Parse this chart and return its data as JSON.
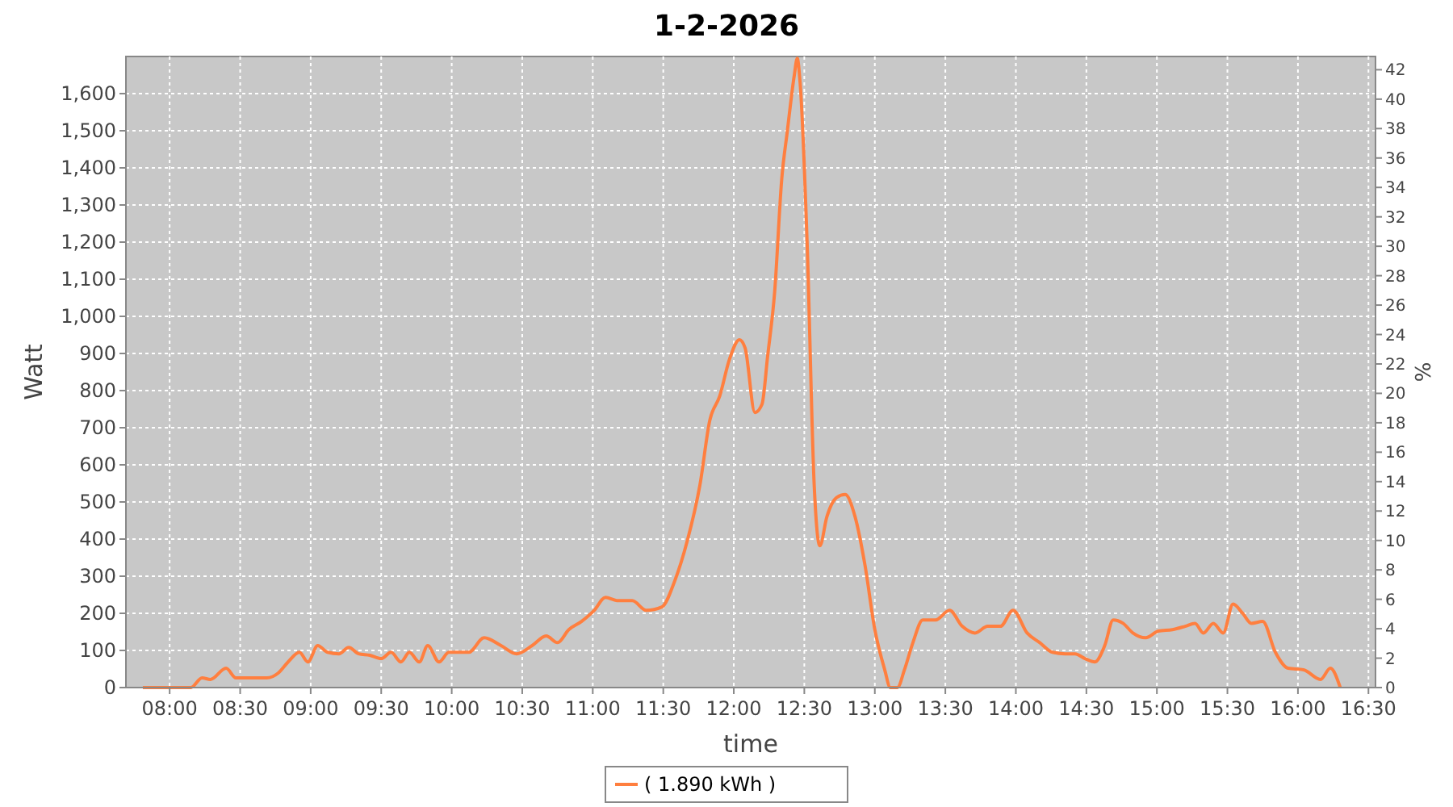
{
  "chart_data": {
    "type": "line",
    "title": "1-2-2026",
    "xlabel": "time",
    "ylabel": "Watt",
    "y2label": "%",
    "xlim": [
      7.69,
      16.55
    ],
    "ylim": [
      0,
      1700
    ],
    "y2lim": [
      0,
      42.9
    ],
    "xticks": [
      {
        "value": 8,
        "label": "08:00"
      },
      {
        "value": 8.5,
        "label": "08:30"
      },
      {
        "value": 9,
        "label": "09:00"
      },
      {
        "value": 9.5,
        "label": "09:30"
      },
      {
        "value": 10,
        "label": "10:00"
      },
      {
        "value": 10.5,
        "label": "10:30"
      },
      {
        "value": 11,
        "label": "11:00"
      },
      {
        "value": 11.5,
        "label": "11:30"
      },
      {
        "value": 12,
        "label": "12:00"
      },
      {
        "value": 12.5,
        "label": "12:30"
      },
      {
        "value": 13,
        "label": "13:00"
      },
      {
        "value": 13.5,
        "label": "13:30"
      },
      {
        "value": 14,
        "label": "14:00"
      },
      {
        "value": 14.5,
        "label": "14:30"
      },
      {
        "value": 15,
        "label": "15:00"
      },
      {
        "value": 15.5,
        "label": "15:30"
      },
      {
        "value": 16,
        "label": "16:00"
      },
      {
        "value": 16.5,
        "label": "16:30"
      }
    ],
    "yticks": [
      0,
      100,
      200,
      300,
      400,
      500,
      600,
      700,
      800,
      900,
      {
        "value": 1000,
        "label": "1,000"
      },
      {
        "value": 1100,
        "label": "1,100"
      },
      {
        "value": 1200,
        "label": "1,200"
      },
      {
        "value": 1300,
        "label": "1,300"
      },
      {
        "value": 1400,
        "label": "1,400"
      },
      {
        "value": 1500,
        "label": "1,500"
      },
      {
        "value": 1600,
        "label": "1,600"
      }
    ],
    "y2ticks": [
      0,
      2,
      4,
      6,
      8,
      10,
      12,
      14,
      16,
      18,
      20,
      22,
      24,
      26,
      28,
      30,
      32,
      34,
      36,
      38,
      40,
      42
    ],
    "grid": true,
    "legend": "bottom",
    "marker": "none",
    "line_style": "solid",
    "series": [
      {
        "name": "( 1.890 kWh )",
        "color": "#ff7f3f",
        "x": [
          7.81,
          8.15,
          8.23,
          8.29,
          8.4,
          8.47,
          8.57,
          8.69,
          8.77,
          8.84,
          8.92,
          8.98,
          9.05,
          9.12,
          9.2,
          9.27,
          9.34,
          9.42,
          9.5,
          9.57,
          9.64,
          9.7,
          9.77,
          9.83,
          9.91,
          9.98,
          10.12,
          10.23,
          10.35,
          10.46,
          10.57,
          10.67,
          10.75,
          10.83,
          10.92,
          11.01,
          11.09,
          11.18,
          11.28,
          11.38,
          11.49,
          11.58,
          11.67,
          11.76,
          11.83,
          11.9,
          11.97,
          12.04,
          12.08,
          12.15,
          12.2,
          12.24,
          12.29,
          12.34,
          12.38,
          12.43,
          12.45,
          12.47,
          12.52,
          12.57,
          12.61,
          12.66,
          12.73,
          12.79,
          12.86,
          12.93,
          13.0,
          13.07,
          13.11,
          13.16,
          13.21,
          13.27,
          13.34,
          13.43,
          13.53,
          13.62,
          13.71,
          13.8,
          13.89,
          13.98,
          14.08,
          14.17,
          14.26,
          14.35,
          14.42,
          14.49,
          14.56,
          14.63,
          14.69,
          14.76,
          14.83,
          14.92,
          15.01,
          15.11,
          15.2,
          15.27,
          15.33,
          15.4,
          15.47,
          15.54,
          15.61,
          15.67,
          15.75,
          15.84,
          15.93,
          16.04,
          16.16,
          16.23,
          16.3
        ],
        "values": [
          0,
          0,
          26,
          22,
          52,
          26,
          26,
          26,
          39,
          69,
          95,
          69,
          113,
          95,
          91,
          108,
          91,
          87,
          78,
          95,
          69,
          95,
          69,
          113,
          69,
          95,
          95,
          134,
          113,
          91,
          113,
          139,
          121,
          156,
          178,
          208,
          243,
          234,
          234,
          208,
          217,
          286,
          395,
          546,
          720,
          785,
          885,
          937,
          915,
          741,
          763,
          893,
          1067,
          1370,
          1500,
          1652,
          1695,
          1630,
          1197,
          546,
          382,
          460,
          512,
          520,
          460,
          330,
          156,
          48,
          0,
          0,
          48,
          121,
          182,
          182,
          208,
          165,
          147,
          165,
          165,
          208,
          147,
          121,
          95,
          91,
          91,
          78,
          69,
          113,
          182,
          173,
          147,
          134,
          152,
          156,
          165,
          173,
          147,
          173,
          147,
          225,
          199,
          173,
          178,
          95,
          52,
          48,
          22,
          52,
          0
        ]
      }
    ]
  }
}
